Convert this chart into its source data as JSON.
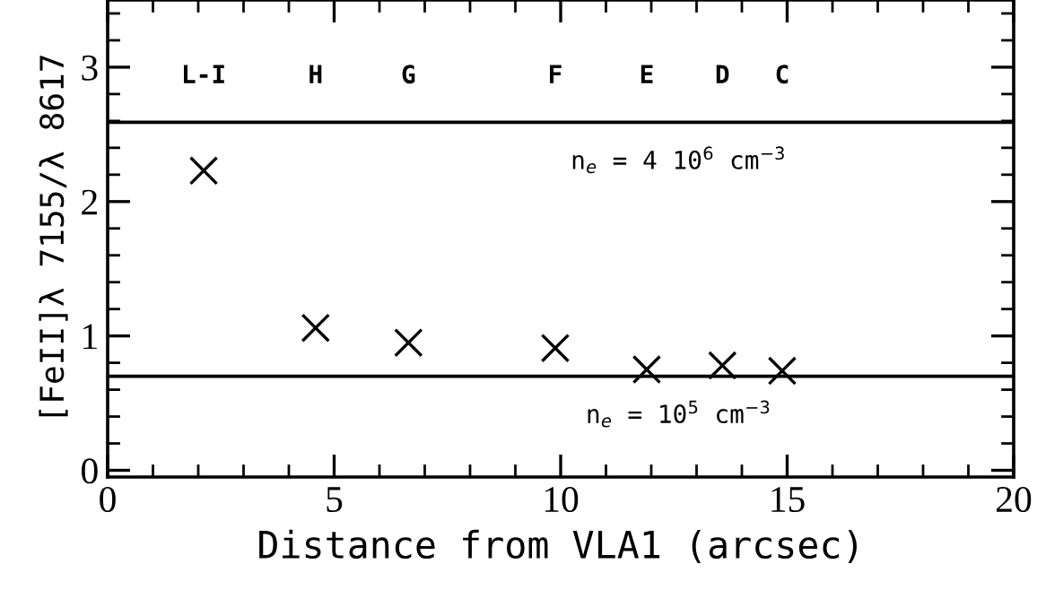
{
  "chart_data": {
    "type": "scatter",
    "xlabel": "Distance from VLA1 (arcsec)",
    "ylabel": "[FeII]λ 7155/λ 8617",
    "x": [
      2.12,
      4.59,
      6.64,
      9.88,
      11.9,
      13.57,
      14.89
    ],
    "series": [
      {
        "color": "#000000",
        "values": [
          2.23,
          1.06,
          0.95,
          0.91,
          0.75,
          0.78,
          0.74
        ]
      }
    ],
    "marker": "cross",
    "xlim": [
      0,
      20
    ],
    "ylim": [
      -0.05,
      3.5
    ],
    "xticks": [
      0,
      5,
      10,
      15,
      20
    ],
    "yticks": [
      0,
      1,
      2,
      3
    ],
    "grid": false,
    "legend": false,
    "ref_lines": [
      {
        "axis": "y",
        "value": 2.59,
        "color": "#000000"
      },
      {
        "axis": "y",
        "value": 0.7,
        "color": "#000000"
      }
    ],
    "annotations": [
      "L-I",
      "H",
      "G",
      "F",
      "E",
      "D",
      "C",
      "n$_{e}$ = 4 10$^{6}$ cm$^{−3}$",
      "n$_{e}$ = 10$^{5}$ cm$^{−3}$"
    ]
  }
}
